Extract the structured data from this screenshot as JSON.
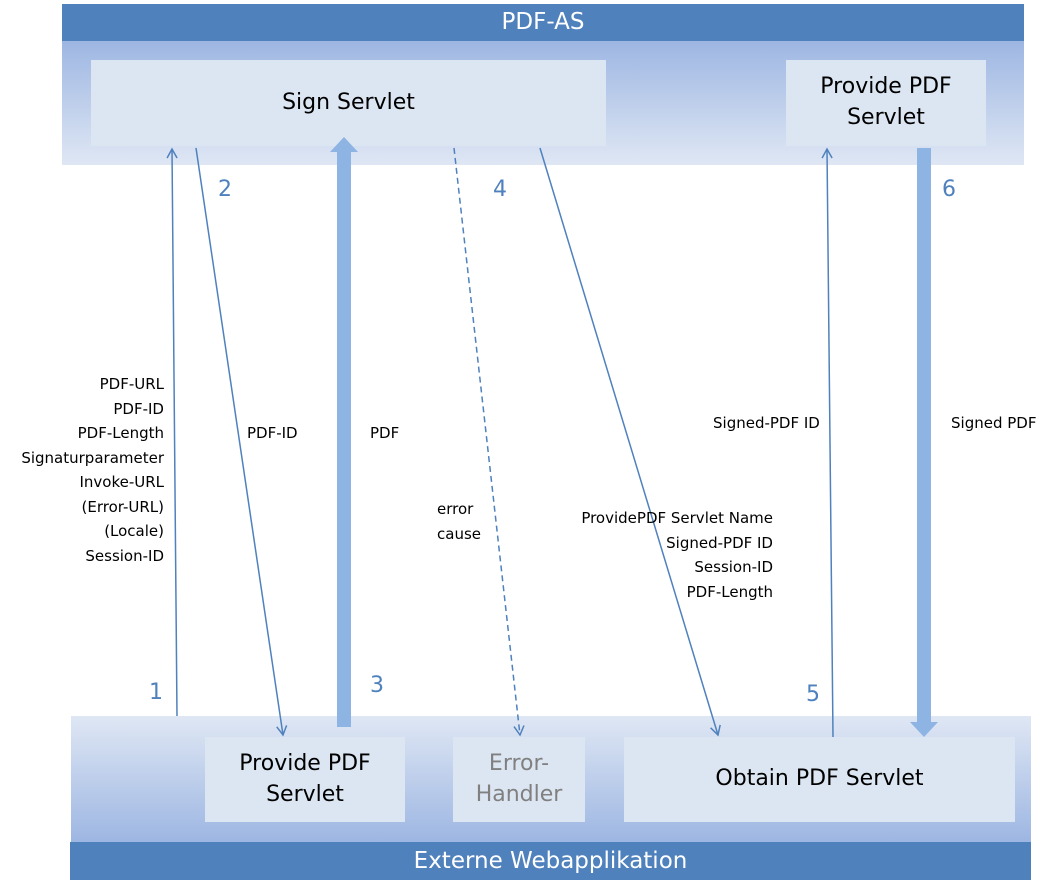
{
  "top": {
    "title": "PDF-AS",
    "sign_servlet": "Sign Servlet",
    "provide_pdf_servlet": "Provide PDF\nServlet"
  },
  "bottom": {
    "title": "Externe Webapplikation",
    "provide_pdf_servlet": "Provide PDF\nServlet",
    "error_handler": "Error-\nHandler",
    "obtain_pdf_servlet": "Obtain PDF Servlet"
  },
  "steps": [
    "1",
    "2",
    "3",
    "4",
    "5",
    "6"
  ],
  "labels": {
    "step1": [
      "PDF-URL",
      "PDF-ID",
      "PDF-Length",
      "Signaturparameter",
      "Invoke-URL",
      "(Error-URL)",
      "(Locale)",
      "Session-ID"
    ],
    "step2": "PDF-ID",
    "step3": "PDF",
    "error": [
      "error",
      "cause"
    ],
    "step4": [
      "ProvidePDF Servlet Name",
      "Signed-PDF ID",
      "Session-ID",
      "PDF-Length"
    ],
    "step5": "Signed-PDF ID",
    "step6": "Signed PDF"
  },
  "colors": {
    "bar": "#4f81bd",
    "box": "#dce6f2",
    "thick_arrow": "#8eb4e3",
    "line": "#4f81bd"
  }
}
